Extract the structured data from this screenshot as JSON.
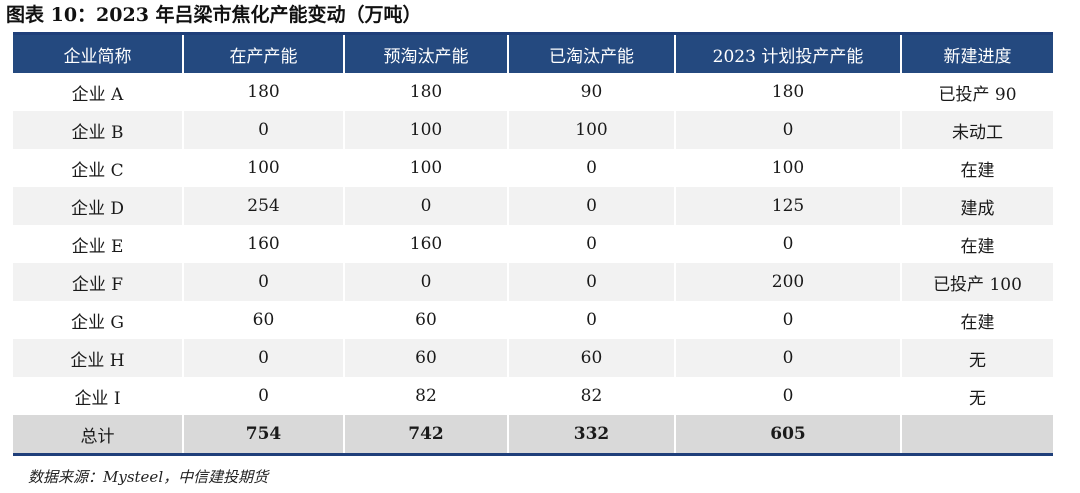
{
  "title": "图表 10：2023 年吕梁市焦化产能变动（万吨）",
  "table": {
    "headers": [
      "企业简称",
      "在产产能",
      "预淘汰产能",
      "已淘汰产能",
      "2023 计划投产产能",
      "新建进度"
    ],
    "rows": [
      [
        "企业 A",
        "180",
        "180",
        "90",
        "180",
        "已投产 90"
      ],
      [
        "企业 B",
        "0",
        "100",
        "100",
        "0",
        "未动工"
      ],
      [
        "企业 C",
        "100",
        "100",
        "0",
        "100",
        "在建"
      ],
      [
        "企业 D",
        "254",
        "0",
        "0",
        "125",
        "建成"
      ],
      [
        "企业 E",
        "160",
        "160",
        "0",
        "0",
        "在建"
      ],
      [
        "企业 F",
        "0",
        "0",
        "0",
        "200",
        "已投产 100"
      ],
      [
        "企业 G",
        "60",
        "60",
        "0",
        "0",
        "在建"
      ],
      [
        "企业 H",
        "0",
        "60",
        "60",
        "0",
        "无"
      ],
      [
        "企业 I",
        "0",
        "82",
        "82",
        "0",
        "无"
      ]
    ],
    "total": [
      "总计",
      "754",
      "742",
      "332",
      "605",
      ""
    ]
  },
  "source": "数据来源：Mysteel，中信建投期货",
  "colors": {
    "header_bg": "#24497f",
    "header_text": "#ffffff",
    "rule": "#1f3f7a",
    "stripe": "#f2f2f2",
    "total_bg": "#d9d9d9"
  }
}
